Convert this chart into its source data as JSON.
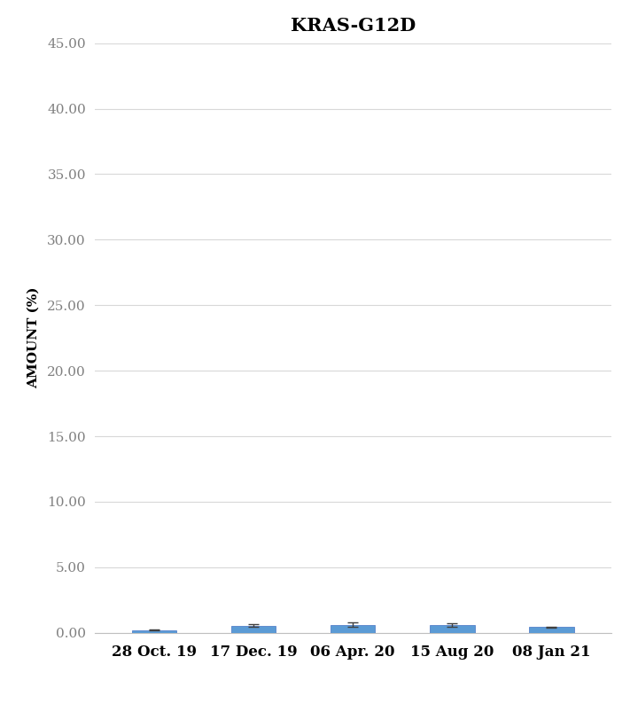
{
  "title": "KRAS-G12D",
  "categories": [
    "28 Oct. 19",
    "17 Dec. 19",
    "06 Apr. 20",
    "15 Aug 20",
    "08 Jan 21"
  ],
  "values": [
    0.2,
    0.55,
    0.6,
    0.58,
    0.42
  ],
  "errors": [
    0.05,
    0.12,
    0.18,
    0.14,
    0.06
  ],
  "bar_color": "#5B9BD5",
  "bar_edge_color": "#4472C4",
  "ylabel": "AMOUNT (%)",
  "ylim": [
    0,
    45
  ],
  "yticks": [
    0.0,
    5.0,
    10.0,
    15.0,
    20.0,
    25.0,
    30.0,
    35.0,
    40.0,
    45.0
  ],
  "ytick_labels": [
    "0.00",
    "5.00",
    "10.00",
    "15.00",
    "20.00",
    "25.00",
    "30.00",
    "35.00",
    "40.00",
    "45.00"
  ],
  "grid_color": "#D8D8D8",
  "background_color": "#FFFFFF",
  "title_fontsize": 15,
  "ylabel_fontsize": 11,
  "ytick_fontsize": 11,
  "xtick_fontsize": 12,
  "bar_width": 0.45,
  "error_color": "#404040",
  "error_capsize": 4,
  "ytick_color": "#808080",
  "xtick_color": "#000000"
}
